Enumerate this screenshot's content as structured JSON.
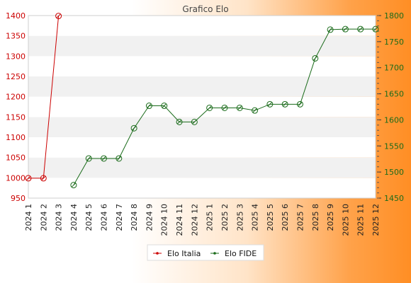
{
  "chart_data": {
    "type": "line",
    "title": "Grafico Elo",
    "categories": [
      "2024 1",
      "2024 2",
      "2024 3",
      "2024 4",
      "2024 5",
      "2024 6",
      "2024 7",
      "2024 8",
      "2024 9",
      "2024 10",
      "2024 11",
      "2024 12",
      "2025 1",
      "2025 2",
      "2025 3",
      "2025 4",
      "2025 5",
      "2025 6",
      "2025 7",
      "2025 8",
      "2025 9",
      "2025 10",
      "2025 11",
      "2025 12"
    ],
    "y_left": {
      "min": 950,
      "max": 1400,
      "ticks": [
        950,
        1000,
        1050,
        1100,
        1150,
        1200,
        1250,
        1300,
        1350,
        1400
      ]
    },
    "y_right": {
      "min": 1450,
      "max": 1800,
      "ticks": [
        1450,
        1500,
        1550,
        1600,
        1650,
        1700,
        1750,
        1800
      ]
    },
    "grid": "horizontal-bands",
    "legend_position": "bottom-center",
    "series": [
      {
        "name": "Elo Italia",
        "axis": "left",
        "color": "#cc0000",
        "values": [
          999,
          999,
          1399,
          null,
          null,
          null,
          null,
          null,
          null,
          null,
          null,
          null,
          null,
          null,
          null,
          null,
          null,
          null,
          null,
          null,
          null,
          null,
          null,
          null
        ]
      },
      {
        "name": "Elo FIDE",
        "axis": "right",
        "color": "#1a6b1a",
        "values": [
          null,
          null,
          null,
          1475,
          1526,
          1526,
          1526,
          1584,
          1627,
          1627,
          1596,
          1596,
          1623,
          1623,
          1623,
          1618,
          1630,
          1630,
          1630,
          1718,
          1773,
          1774,
          1774,
          1774
        ]
      }
    ]
  }
}
